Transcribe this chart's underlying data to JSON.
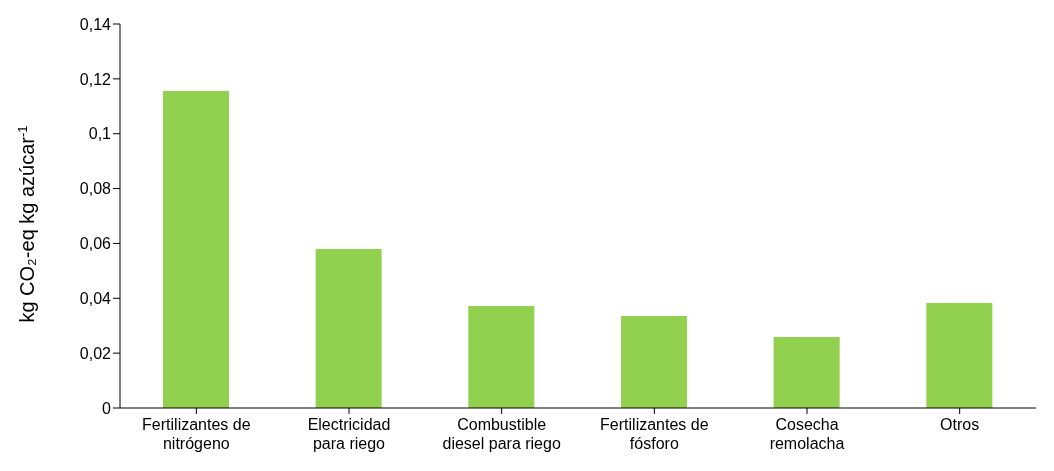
{
  "chart_data": {
    "type": "bar",
    "ylabel": "kg CO₂-eq kg azúcar$^{-1}$",
    "categories": [
      "Fertilizantes de\nnitrógeno",
      "Electricidad\npara riego",
      "Combustible\ndiesel para riego",
      "Fertilizantes de\nfósforo",
      "Cosecha\nremolacha",
      "Otros"
    ],
    "values": [
      0.1156,
      0.058,
      0.0372,
      0.0335,
      0.0259,
      0.0383
    ],
    "color": "#92d050",
    "ylim": [
      0,
      0.14
    ],
    "yticks": [
      {
        "value": 0,
        "label": "0"
      },
      {
        "value": 0.02,
        "label": "0,02"
      },
      {
        "value": 0.04,
        "label": "0,04"
      },
      {
        "value": 0.06,
        "label": "0,06"
      },
      {
        "value": 0.08,
        "label": "0,08"
      },
      {
        "value": 0.1,
        "label": "0,1"
      },
      {
        "value": 0.12,
        "label": "0,12"
      },
      {
        "value": 0.14,
        "label": "0,14"
      }
    ],
    "grid": false
  }
}
